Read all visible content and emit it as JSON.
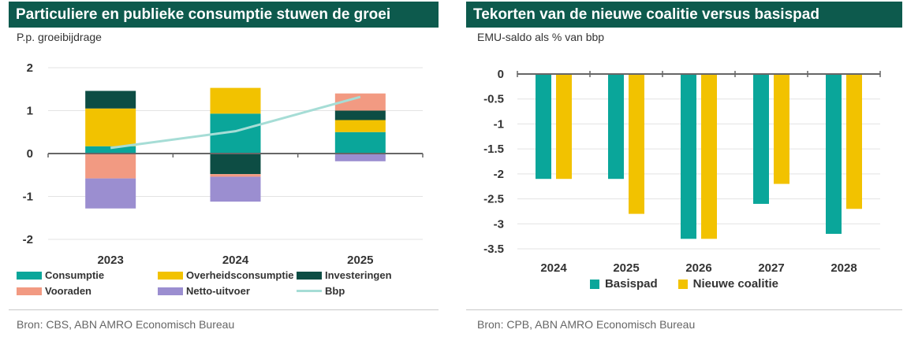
{
  "colors": {
    "title_bg": "#0d5a4d",
    "consumptie": "#0aa69a",
    "overheidsconsumptie": "#f2c200",
    "investeringen": "#0d4d44",
    "vooraden": "#f29a82",
    "netto_uitvoer": "#9b8ed0",
    "bbp": "#a6ddd6",
    "basispad": "#0aa69a",
    "nieuwe_coalitie": "#f2c200",
    "grid": "#e3e3e3",
    "axis": "#666666"
  },
  "left": {
    "title": "Particuliere en publieke consumptie stuwen de groei",
    "subtitle": "P.p. groeibijdrage",
    "source": "Bron: CBS, ABN AMRO Economisch Bureau",
    "legend": [
      {
        "key": "consumptie",
        "label": "Consumptie",
        "kind": "bar"
      },
      {
        "key": "overheidsconsumptie",
        "label": "Overheidsconsumptie",
        "kind": "bar"
      },
      {
        "key": "investeringen",
        "label": "Investeringen",
        "kind": "bar"
      },
      {
        "key": "vooraden",
        "label": "Vooraden",
        "kind": "bar"
      },
      {
        "key": "netto_uitvoer",
        "label": "Netto-uitvoer",
        "kind": "bar"
      },
      {
        "key": "bbp",
        "label": "Bbp",
        "kind": "line"
      }
    ]
  },
  "right": {
    "title": "Tekorten van de nieuwe coalitie versus basispad",
    "subtitle": "EMU-saldo als % van bbp",
    "source": "Bron: CPB, ABN AMRO Economisch Bureau",
    "legend": [
      {
        "key": "basispad",
        "label": "Basispad"
      },
      {
        "key": "nieuwe_coalitie",
        "label": "Nieuwe coalitie"
      }
    ]
  },
  "chart_data": [
    {
      "type": "bar",
      "stacked": true,
      "title": "Particuliere en publieke consumptie stuwen de groei",
      "ylabel": "P.p. groeibijdrage",
      "xlabel": "",
      "categories": [
        "2023",
        "2024",
        "2025"
      ],
      "ylim": [
        -2,
        2
      ],
      "yticks": [
        "2",
        "1",
        "0",
        "-1",
        "-2"
      ],
      "grid": true,
      "series": [
        {
          "name": "Consumptie",
          "key": "consumptie",
          "values": [
            0.17,
            0.93,
            0.5
          ]
        },
        {
          "name": "Overheidsconsumptie",
          "key": "overheidsconsumptie",
          "values": [
            0.88,
            0.6,
            0.28
          ]
        },
        {
          "name": "Investeringen",
          "key": "investeringen",
          "values": [
            0.41,
            -0.48,
            0.22
          ]
        },
        {
          "name": "Vooraden",
          "key": "vooraden",
          "values": [
            -0.58,
            -0.06,
            0.4
          ]
        },
        {
          "name": "Netto-uitvoer",
          "key": "netto_uitvoer",
          "values": [
            -0.7,
            -0.58,
            -0.18
          ]
        }
      ],
      "line_series": {
        "name": "Bbp",
        "key": "bbp",
        "values": [
          0.13,
          0.52,
          1.32
        ]
      }
    },
    {
      "type": "bar",
      "stacked": false,
      "title": "Tekorten van de nieuwe coalitie versus basispad",
      "ylabel": "EMU-saldo als % van bbp",
      "xlabel": "",
      "categories": [
        "2024",
        "2025",
        "2026",
        "2027",
        "2028"
      ],
      "ylim": [
        -3.5,
        0
      ],
      "yticks": [
        "0",
        "-0.5",
        "-1",
        "-1.5",
        "-2",
        "-2.5",
        "-3",
        "-3.5"
      ],
      "grid": true,
      "legend_position": "bottom",
      "series": [
        {
          "name": "Basispad",
          "key": "basispad",
          "values": [
            -2.1,
            -2.1,
            -3.3,
            -2.6,
            -3.2
          ]
        },
        {
          "name": "Nieuwe coalitie",
          "key": "nieuwe_coalitie",
          "values": [
            -2.1,
            -2.8,
            -3.3,
            -2.2,
            -2.7
          ]
        }
      ]
    }
  ]
}
